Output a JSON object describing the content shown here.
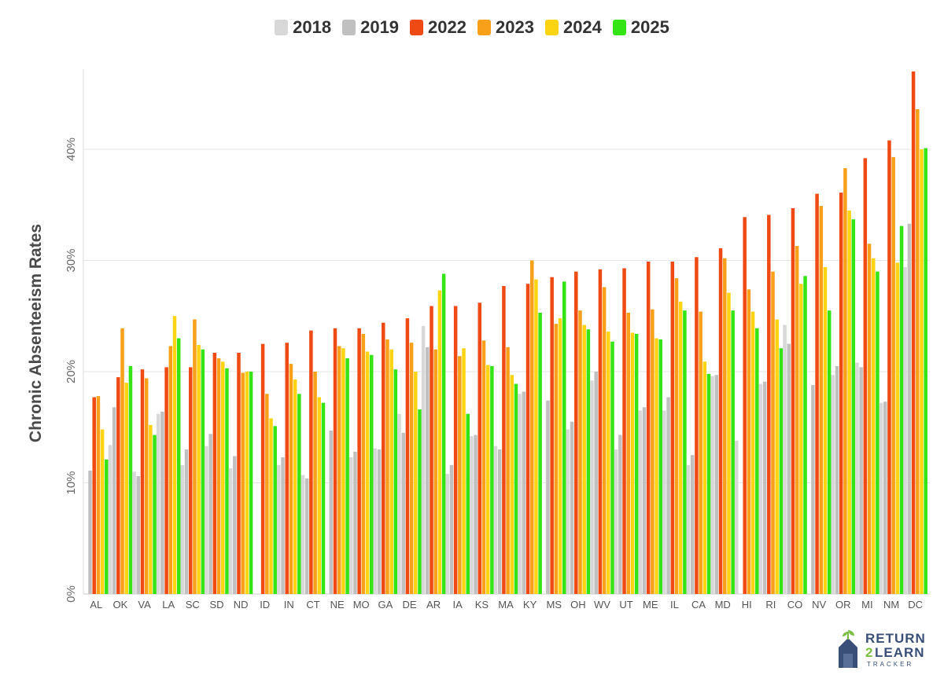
{
  "chart_data": {
    "type": "bar",
    "ylabel": "Chronic Absenteeism Rates",
    "ylim": [
      0,
      47
    ],
    "yticks": [
      {
        "value": 0,
        "label": "0%"
      },
      {
        "value": 10,
        "label": "10%"
      },
      {
        "value": 20,
        "label": "20%"
      },
      {
        "value": 30,
        "label": "30%"
      },
      {
        "value": 40,
        "label": "40%"
      }
    ],
    "grid": true,
    "legend_position": "top-center",
    "categories": [
      "AL",
      "OK",
      "VA",
      "LA",
      "SC",
      "SD",
      "ND",
      "ID",
      "IN",
      "CT",
      "NE",
      "MO",
      "GA",
      "DE",
      "AR",
      "IA",
      "KS",
      "MA",
      "KY",
      "MS",
      "OH",
      "WV",
      "UT",
      "ME",
      "IL",
      "CA",
      "MD",
      "HI",
      "RI",
      "CO",
      "NV",
      "OR",
      "MI",
      "NM",
      "DC"
    ],
    "series": [
      {
        "name": "2018",
        "color": "#d8d8d8",
        "values": [
          null,
          13.4,
          11.0,
          16.2,
          11.6,
          13.3,
          11.3,
          null,
          11.6,
          10.7,
          null,
          12.3,
          13.1,
          16.2,
          24.1,
          10.8,
          14.2,
          13.3,
          18.0,
          null,
          14.8,
          19.2,
          13.0,
          16.5,
          16.5,
          11.6,
          19.6,
          13.8,
          18.9,
          24.2,
          null,
          19.7,
          20.8,
          17.2,
          29.4
        ]
      },
      {
        "name": "2019",
        "color": "#c0c0c0",
        "values": [
          11.1,
          16.8,
          10.6,
          16.4,
          13.0,
          14.4,
          12.4,
          null,
          12.3,
          10.4,
          14.7,
          12.8,
          13.0,
          14.5,
          22.2,
          11.6,
          14.3,
          13.0,
          18.2,
          17.4,
          15.5,
          20.0,
          14.3,
          16.8,
          17.7,
          12.5,
          19.7,
          null,
          19.1,
          22.5,
          18.8,
          20.5,
          20.4,
          17.3,
          33.3
        ]
      },
      {
        "name": "2022",
        "color": "#f04a14",
        "values": [
          17.7,
          19.5,
          20.2,
          20.4,
          20.4,
          21.7,
          21.7,
          22.5,
          22.6,
          23.7,
          23.9,
          23.9,
          24.4,
          24.8,
          25.9,
          25.9,
          26.2,
          27.7,
          27.9,
          28.5,
          29.0,
          29.2,
          29.3,
          29.9,
          29.9,
          30.3,
          31.1,
          33.9,
          34.1,
          34.7,
          36.0,
          36.1,
          39.2,
          40.8,
          47.0
        ]
      },
      {
        "name": "2023",
        "color": "#f8a01a",
        "values": [
          17.8,
          23.9,
          19.4,
          22.3,
          24.7,
          21.2,
          19.9,
          18.0,
          20.7,
          20.0,
          22.3,
          23.4,
          22.9,
          22.6,
          22.0,
          21.4,
          22.8,
          22.2,
          30.0,
          24.3,
          25.5,
          27.6,
          25.3,
          25.6,
          28.4,
          25.4,
          30.2,
          27.4,
          29.0,
          31.3,
          34.9,
          38.3,
          31.5,
          39.3,
          43.6
        ]
      },
      {
        "name": "2024",
        "color": "#fcd412",
        "values": [
          14.8,
          19.0,
          15.2,
          25.0,
          22.4,
          20.9,
          20.0,
          15.8,
          19.3,
          17.7,
          22.1,
          21.8,
          22.0,
          20.0,
          27.3,
          22.1,
          20.6,
          19.7,
          28.3,
          24.8,
          24.2,
          23.6,
          23.5,
          23.0,
          26.3,
          20.9,
          27.1,
          25.4,
          24.7,
          27.9,
          29.4,
          34.5,
          30.2,
          29.8,
          40.0
        ]
      },
      {
        "name": "2025",
        "color": "#34e414",
        "values": [
          12.1,
          20.5,
          14.3,
          23.0,
          22.0,
          20.3,
          20.0,
          15.1,
          18.0,
          17.2,
          21.2,
          21.5,
          20.2,
          16.6,
          28.8,
          16.2,
          20.5,
          18.9,
          25.3,
          28.1,
          23.8,
          22.7,
          23.4,
          22.9,
          25.5,
          19.8,
          25.5,
          23.9,
          22.1,
          28.6,
          25.5,
          33.7,
          29.0,
          33.1,
          40.1
        ]
      }
    ]
  },
  "logo": {
    "line1": "RETURN",
    "two": "2",
    "line2": "LEARN",
    "line3": "TRACKER"
  }
}
